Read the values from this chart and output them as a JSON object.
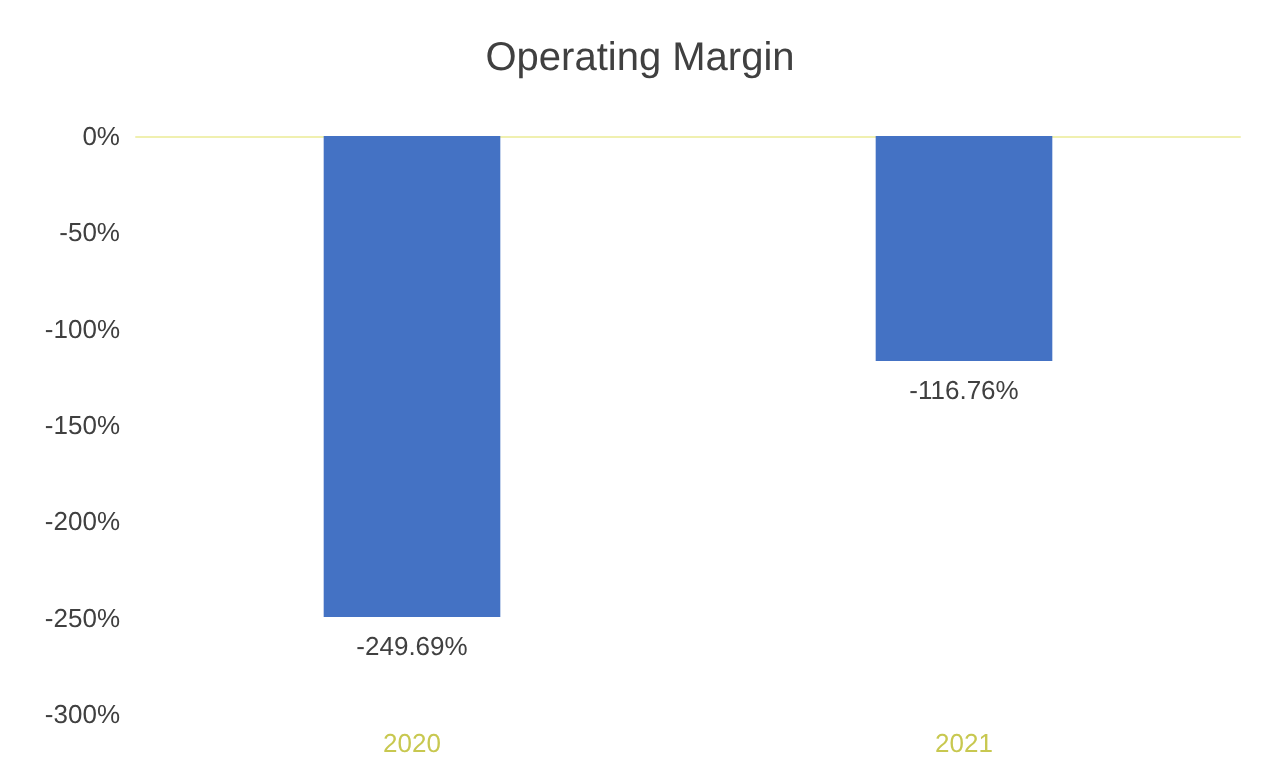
{
  "chart_data": {
    "type": "bar",
    "title": "Operating Margin",
    "categories": [
      "2020",
      "2021"
    ],
    "values": [
      -249.69,
      -116.76
    ],
    "color": "#4472c4",
    "value_labels": [
      "-249.69%",
      "-116.76%"
    ],
    "ylim": [
      -300,
      0
    ],
    "yticks": [
      {
        "value": 0,
        "label": "0%"
      },
      {
        "value": -50,
        "label": "-50%"
      },
      {
        "value": -100,
        "label": "-100%"
      },
      {
        "value": -150,
        "label": "-150%"
      },
      {
        "value": -200,
        "label": "-200%"
      },
      {
        "value": -250,
        "label": "-250%"
      },
      {
        "value": -300,
        "label": "-300%"
      }
    ],
    "grid": false
  }
}
